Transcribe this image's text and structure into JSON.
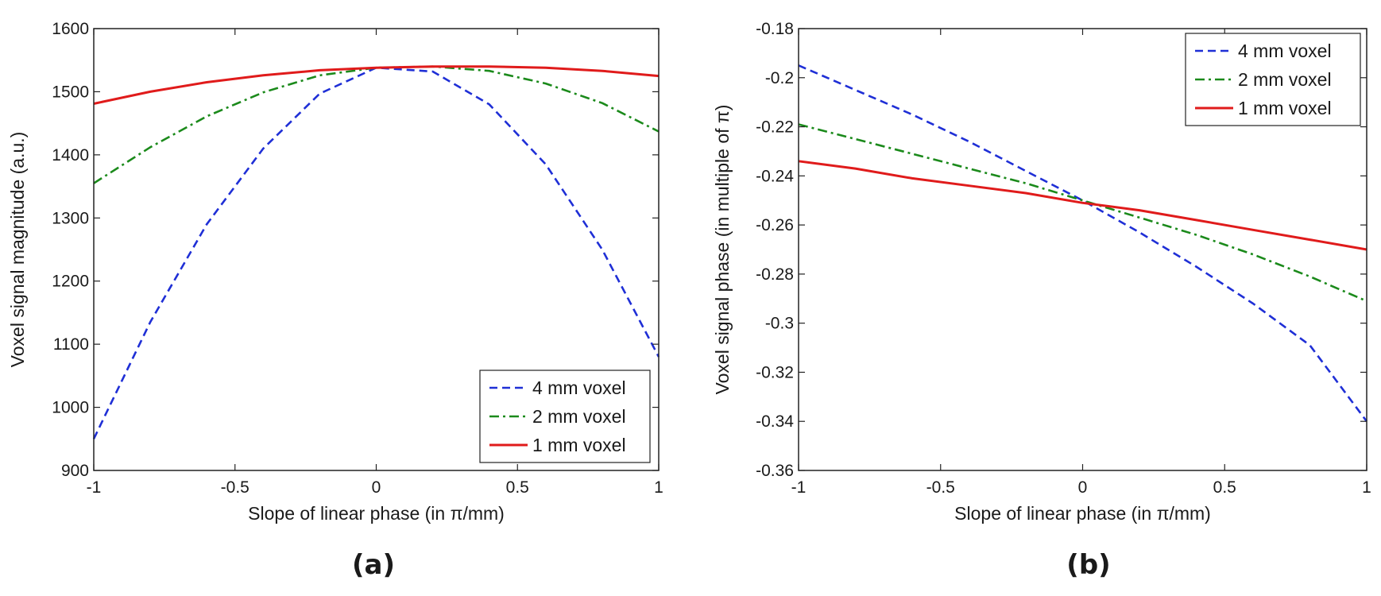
{
  "chart_data": [
    {
      "type": "line",
      "panel_label": "(a)",
      "xlabel": "Slope of linear phase (in π/mm)",
      "ylabel": "Voxel signal magnitude (a.u.)",
      "xlim": [
        -1,
        1
      ],
      "ylim": [
        900,
        1600
      ],
      "xticks": [
        -1,
        -0.5,
        0,
        0.5,
        1
      ],
      "xtick_labels": [
        "-1",
        "-0.5",
        "0",
        "0.5",
        "1"
      ],
      "yticks": [
        900,
        1000,
        1100,
        1200,
        1300,
        1400,
        1500,
        1600
      ],
      "ytick_labels": [
        "900",
        "1000",
        "1100",
        "1200",
        "1300",
        "1400",
        "1500",
        "1600"
      ],
      "grid": false,
      "legend_position": "bottom-right",
      "series": [
        {
          "name": "4 mm voxel",
          "color": "#1f2fd6",
          "style": "dashed",
          "x": [
            -1,
            -0.8,
            -0.6,
            -0.4,
            -0.2,
            0,
            0.2,
            0.4,
            0.6,
            0.8,
            1
          ],
          "y": [
            950,
            1135,
            1290,
            1410,
            1497,
            1538,
            1532,
            1480,
            1385,
            1250,
            1080
          ]
        },
        {
          "name": "2 mm voxel",
          "color": "#1b8a1b",
          "style": "dashdot",
          "x": [
            -1,
            -0.8,
            -0.6,
            -0.4,
            -0.2,
            0,
            0.2,
            0.4,
            0.6,
            0.8,
            1
          ],
          "y": [
            1355,
            1412,
            1461,
            1499,
            1526,
            1538,
            1540,
            1533,
            1513,
            1482,
            1437
          ]
        },
        {
          "name": "1 mm voxel",
          "color": "#e01b1b",
          "style": "solid",
          "x": [
            -1,
            -0.8,
            -0.6,
            -0.4,
            -0.2,
            0,
            0.2,
            0.4,
            0.6,
            0.8,
            1
          ],
          "y": [
            1481,
            1500,
            1515,
            1526,
            1534,
            1538,
            1540,
            1540,
            1538,
            1533,
            1525
          ]
        }
      ]
    },
    {
      "type": "line",
      "panel_label": "(b)",
      "xlabel": "Slope of linear phase (in π/mm)",
      "ylabel": "Voxel signal phase (in multiple of π)",
      "xlim": [
        -1,
        1
      ],
      "ylim": [
        -0.36,
        -0.18
      ],
      "xticks": [
        -1,
        -0.5,
        0,
        0.5,
        1
      ],
      "xtick_labels": [
        "-1",
        "-0.5",
        "0",
        "0.5",
        "1"
      ],
      "yticks": [
        -0.36,
        -0.34,
        -0.32,
        -0.3,
        -0.28,
        -0.26,
        -0.24,
        -0.22,
        -0.2,
        -0.18
      ],
      "ytick_labels": [
        "-0.36",
        "-0.34",
        "-0.32",
        "-0.3",
        "-0.28",
        "-0.26",
        "-0.24",
        "-0.22",
        "-0.2",
        "-0.18"
      ],
      "grid": false,
      "legend_position": "top-right",
      "series": [
        {
          "name": "4 mm voxel",
          "color": "#1f2fd6",
          "style": "dashed",
          "x": [
            -1,
            -0.8,
            -0.6,
            -0.4,
            -0.2,
            0,
            0.2,
            0.4,
            0.6,
            0.8,
            1
          ],
          "y": [
            -0.195,
            -0.205,
            -0.215,
            -0.226,
            -0.238,
            -0.25,
            -0.263,
            -0.277,
            -0.292,
            -0.309,
            -0.34
          ]
        },
        {
          "name": "2 mm voxel",
          "color": "#1b8a1b",
          "style": "dashdot",
          "x": [
            -1,
            -0.8,
            -0.6,
            -0.4,
            -0.2,
            0,
            0.2,
            0.4,
            0.6,
            0.8,
            1
          ],
          "y": [
            -0.219,
            -0.225,
            -0.231,
            -0.237,
            -0.243,
            -0.25,
            -0.257,
            -0.264,
            -0.272,
            -0.281,
            -0.291
          ]
        },
        {
          "name": "1 mm voxel",
          "color": "#e01b1b",
          "style": "solid",
          "x": [
            -1,
            -0.8,
            -0.6,
            -0.4,
            -0.2,
            0,
            0.2,
            0.4,
            0.6,
            0.8,
            1
          ],
          "y": [
            -0.234,
            -0.237,
            -0.241,
            -0.244,
            -0.247,
            -0.251,
            -0.254,
            -0.258,
            -0.262,
            -0.266,
            -0.27
          ]
        }
      ]
    }
  ]
}
